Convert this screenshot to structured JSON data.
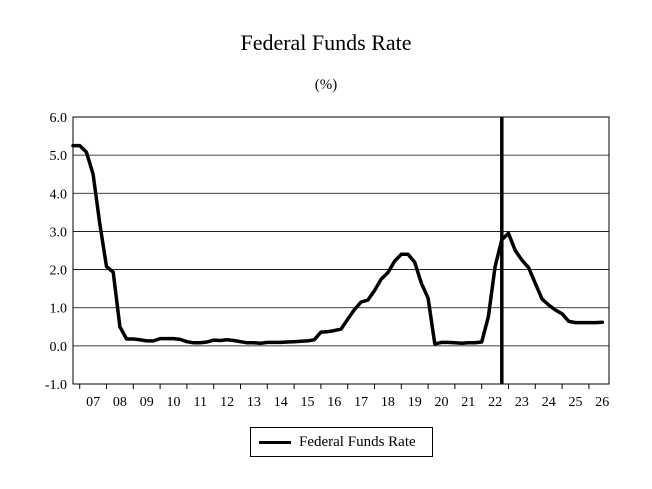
{
  "chart_data": {
    "type": "line",
    "title": "Federal Funds Rate",
    "subtitle": "(%)",
    "xlabel": "",
    "ylabel": "",
    "ylim": [
      -1.0,
      6.0
    ],
    "xlim": [
      2006.75,
      2026.75
    ],
    "yticks": [
      "6.0",
      "5.0",
      "4.0",
      "3.0",
      "2.0",
      "1.0",
      "0.0",
      "-1.0"
    ],
    "yticks_values": [
      6,
      5,
      4,
      3,
      2,
      1,
      0,
      -1
    ],
    "xticks": [
      "07",
      "08",
      "09",
      "10",
      "11",
      "12",
      "13",
      "14",
      "15",
      "16",
      "17",
      "18",
      "19",
      "20",
      "21",
      "22",
      "23",
      "24",
      "25",
      "26"
    ],
    "grid": true,
    "legend_position": "bottom-center",
    "vertical_marker_x": 2022.75,
    "series": [
      {
        "name": "Federal Funds Rate",
        "color": "#000000",
        "x": [
          2006.75,
          2007.0,
          2007.25,
          2007.5,
          2007.75,
          2008.0,
          2008.25,
          2008.5,
          2008.75,
          2009.0,
          2009.25,
          2009.5,
          2009.75,
          2010.0,
          2010.25,
          2010.5,
          2010.75,
          2011.0,
          2011.25,
          2011.5,
          2011.75,
          2012.0,
          2012.25,
          2012.5,
          2012.75,
          2013.0,
          2013.25,
          2013.5,
          2013.75,
          2014.0,
          2014.25,
          2014.5,
          2014.75,
          2015.0,
          2015.25,
          2015.5,
          2015.75,
          2016.0,
          2016.25,
          2016.5,
          2016.75,
          2017.0,
          2017.25,
          2017.5,
          2017.75,
          2018.0,
          2018.25,
          2018.5,
          2018.75,
          2019.0,
          2019.25,
          2019.5,
          2019.75,
          2020.0,
          2020.25,
          2020.5,
          2020.75,
          2021.0,
          2021.25,
          2021.5,
          2021.75,
          2022.0,
          2022.25,
          2022.5,
          2022.75,
          2023.0,
          2023.25,
          2023.5,
          2023.75,
          2024.0,
          2024.25,
          2024.5,
          2024.75,
          2025.0,
          2025.25,
          2025.5,
          2025.75,
          2026.0,
          2026.25,
          2026.5
        ],
        "values": [
          5.25,
          5.25,
          5.08,
          4.5,
          3.2,
          2.08,
          1.93,
          0.5,
          0.18,
          0.18,
          0.16,
          0.13,
          0.13,
          0.19,
          0.19,
          0.19,
          0.17,
          0.11,
          0.08,
          0.08,
          0.1,
          0.15,
          0.14,
          0.16,
          0.14,
          0.11,
          0.08,
          0.08,
          0.07,
          0.09,
          0.09,
          0.09,
          0.1,
          0.11,
          0.12,
          0.13,
          0.16,
          0.36,
          0.37,
          0.4,
          0.44,
          0.7,
          0.95,
          1.15,
          1.2,
          1.45,
          1.75,
          1.92,
          2.22,
          2.4,
          2.4,
          2.19,
          1.64,
          1.25,
          0.05,
          0.09,
          0.09,
          0.08,
          0.07,
          0.08,
          0.08,
          0.1,
          0.77,
          2.08,
          2.78,
          2.95,
          2.5,
          2.25,
          2.05,
          1.64,
          1.23,
          1.07,
          0.94,
          0.84,
          0.64,
          0.61,
          0.61,
          0.61,
          0.61,
          0.62
        ]
      }
    ]
  }
}
